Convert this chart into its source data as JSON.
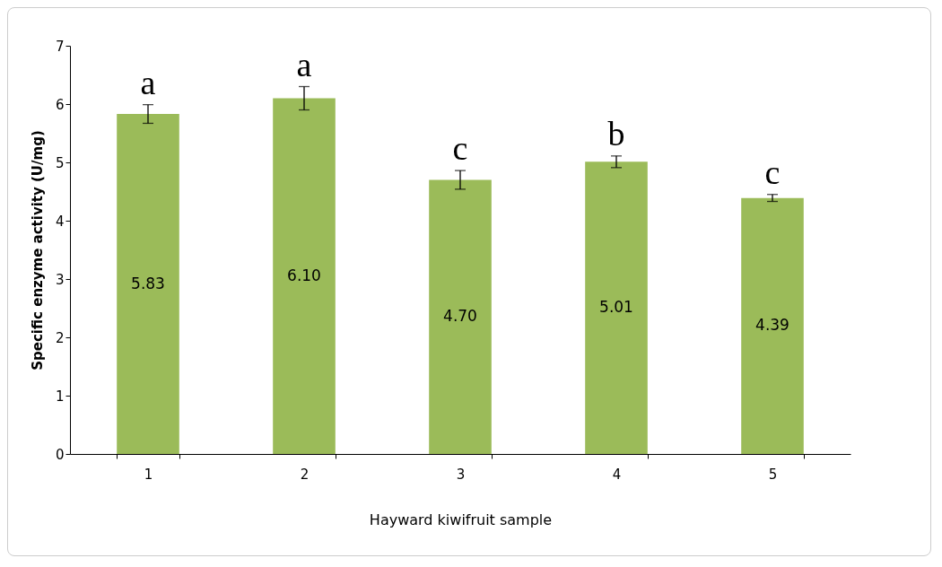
{
  "chart_data": {
    "type": "bar",
    "xlabel": "Hayward kiwifruit sample",
    "ylabel": "Specific enzyme activity (U/mg)",
    "categories": [
      "1",
      "2",
      "3",
      "4",
      "5"
    ],
    "values": [
      5.83,
      6.1,
      4.7,
      5.01,
      4.39
    ],
    "value_labels": [
      "5.83",
      "6.10",
      "4.70",
      "5.01",
      "4.39"
    ],
    "errors": [
      0.16,
      0.2,
      0.16,
      0.1,
      0.06
    ],
    "color": "#9bbb59",
    "ylim": [
      0,
      7
    ],
    "yticks": [
      0,
      1,
      2,
      3,
      4,
      5,
      6,
      7
    ],
    "grid": false,
    "annotations": [
      {
        "text": "a",
        "x": "1",
        "y": 5.99
      },
      {
        "text": "a",
        "x": "2",
        "y": 6.3
      },
      {
        "text": "c",
        "x": "3",
        "y": 4.86
      },
      {
        "text": "b",
        "x": "4",
        "y": 5.11
      },
      {
        "text": "c",
        "x": "5",
        "y": 4.45
      }
    ]
  }
}
